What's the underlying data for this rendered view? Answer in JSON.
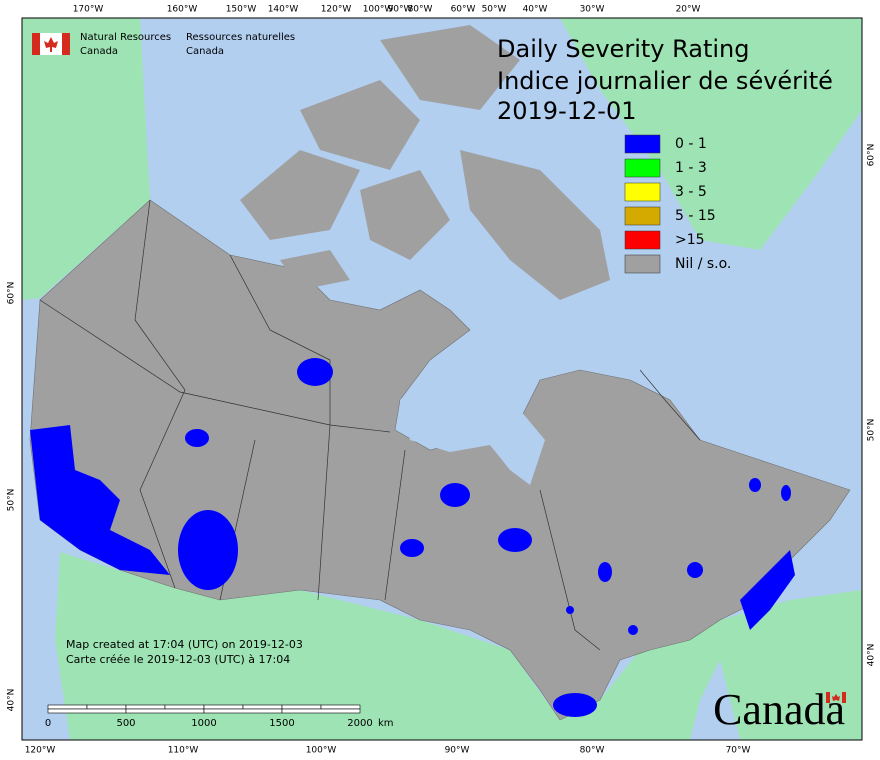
{
  "header": {
    "agency_en": [
      "Natural Resources",
      "Canada"
    ],
    "agency_fr": [
      "Ressources naturelles",
      "Canada"
    ]
  },
  "title": {
    "line1": "Daily Severity Rating",
    "line2": "Indice journalier de sévérité",
    "date": "2019-12-01"
  },
  "legend": [
    {
      "label": "0 - 1",
      "color": "#0000ff"
    },
    {
      "label": "1 - 3",
      "color": "#00ff00"
    },
    {
      "label": "3 - 5",
      "color": "#ffff00"
    },
    {
      "label": "5 - 15",
      "color": "#d4aa00"
    },
    {
      "label": ">15",
      "color": "#ff0000"
    },
    {
      "label": "Nil / s.o.",
      "color": "#a0a0a0"
    }
  ],
  "graticule": {
    "top": [
      "170°W",
      "160°W",
      "150°W",
      "140°W",
      "120°W",
      "100°W",
      "90°W",
      "80°W",
      "60°W",
      "50°W",
      "40°W",
      "30°W",
      "20°W"
    ],
    "bottom": [
      "120°W",
      "110°W",
      "100°W",
      "90°W",
      "80°W",
      "70°W"
    ],
    "left": [
      "60°N",
      "50°N",
      "40°N"
    ],
    "right": [
      "60°N",
      "50°N",
      "40°N"
    ]
  },
  "credits": [
    "Map created at 17:04 (UTC) on 2019-12-03",
    "Carte créée le 2019-12-03 (UTC) à 17:04"
  ],
  "scale_bar": {
    "ticks": [
      0,
      500,
      1000,
      1500,
      2000
    ],
    "unit": "km"
  },
  "wordmark": "Canada"
}
